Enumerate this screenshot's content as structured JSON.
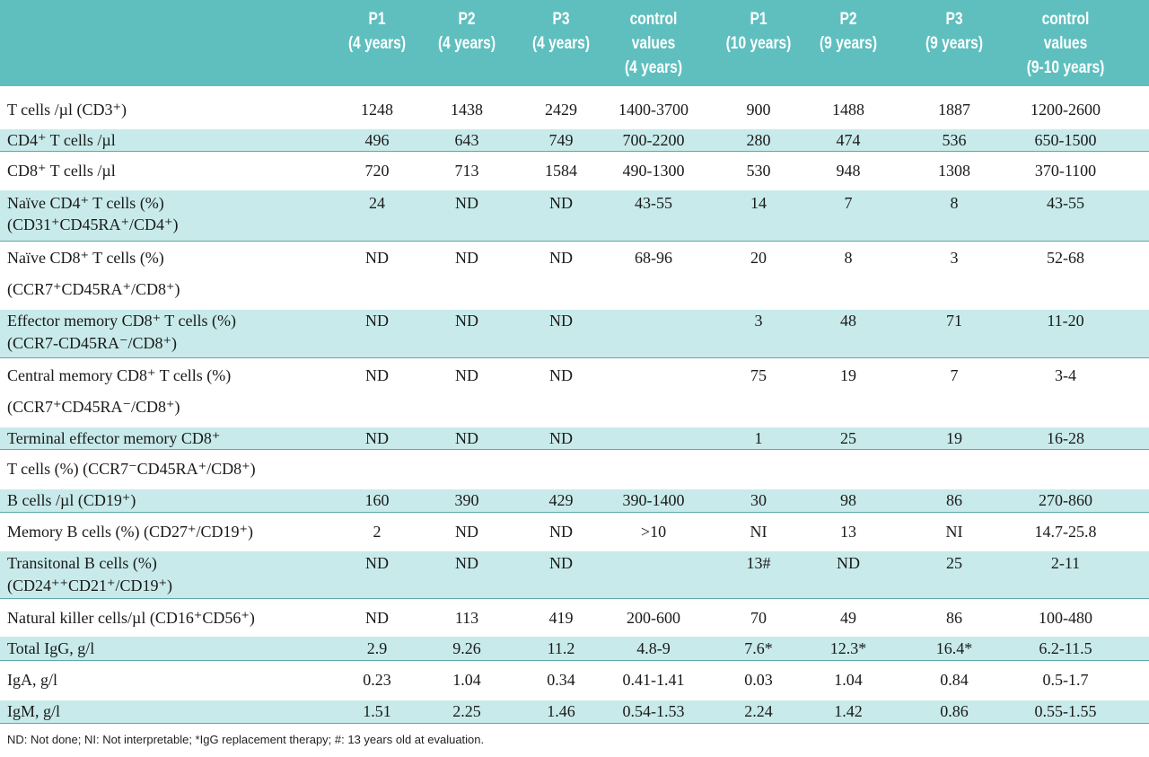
{
  "colors": {
    "header_bg": "#5fbfbf",
    "row_shade": "#c8eaea",
    "header_text": "#ffffff"
  },
  "columns": [
    {
      "line1": "P1",
      "line2": "(4 years)",
      "line3": ""
    },
    {
      "line1": "P2",
      "line2": "(4 years)",
      "line3": ""
    },
    {
      "line1": "P3",
      "line2": "(4 years)",
      "line3": ""
    },
    {
      "line1": "control",
      "line2": "values",
      "line3": "(4 years)"
    },
    {
      "line1": "P1",
      "line2": "(10 years)",
      "line3": ""
    },
    {
      "line1": "P2",
      "line2": "(9 years)",
      "line3": ""
    },
    {
      "line1": "P3",
      "line2": "(9 years)",
      "line3": ""
    },
    {
      "line1": "control",
      "line2": "values",
      "line3": "(9-10 years)"
    }
  ],
  "rows": [
    {
      "label": [
        "T cells /µl (CD3⁺)"
      ],
      "values": [
        "1248",
        "1438",
        "2429",
        "1400-3700",
        "900",
        "1488",
        "1887",
        "1200-2600"
      ]
    },
    {
      "label": [
        "CD4⁺ T cells /µl"
      ],
      "values": [
        "496",
        "643",
        "749",
        "700-2200",
        "280",
        "474",
        "536",
        "650-1500"
      ]
    },
    {
      "label": [
        "CD8⁺ T cells /µl"
      ],
      "values": [
        "720",
        "713",
        "1584",
        "490-1300",
        "530",
        "948",
        "1308",
        "370-1100"
      ]
    },
    {
      "label": [
        "Naïve CD4⁺ T cells (%)",
        "(CD31⁺CD45RA⁺/CD4⁺)"
      ],
      "values": [
        "24",
        "ND",
        "ND",
        "43-55",
        "14",
        "7",
        "8",
        "43-55"
      ]
    },
    {
      "label": [
        "Naïve CD8⁺ T cells (%)",
        "(CCR7⁺CD45RA⁺/CD8⁺)"
      ],
      "values": [
        "ND",
        "ND",
        "ND",
        "68-96",
        "20",
        "8",
        "3",
        "52-68"
      ]
    },
    {
      "label": [
        "Effector memory CD8⁺ T cells (%)",
        "(CCR7-CD45RA⁻/CD8⁺)"
      ],
      "values": [
        "ND",
        "ND",
        "ND",
        "",
        "3",
        "48",
        "71",
        "11-20"
      ]
    },
    {
      "label": [
        "Central memory CD8⁺ T cells  (%)",
        "(CCR7⁺CD45RA⁻/CD8⁺)"
      ],
      "values": [
        "ND",
        "ND",
        "ND",
        "",
        "75",
        "19",
        "7",
        "3-4"
      ]
    },
    {
      "label": [
        "Terminal effector memory CD8⁺",
        "T cells  (%) (CCR7⁻CD45RA⁺/CD8⁺)"
      ],
      "values": [
        "ND",
        "ND",
        "ND",
        "",
        "1",
        "25",
        "19",
        "16-28"
      ]
    },
    {
      "label": [
        "B cells /µl (CD19⁺)"
      ],
      "values": [
        "160",
        "390",
        "429",
        "390-1400",
        "30",
        "98",
        "86",
        "270-860"
      ]
    },
    {
      "label": [
        "Memory B cells (%)  (CD27⁺/CD19⁺)"
      ],
      "values": [
        "2",
        "ND",
        "ND",
        ">10",
        "NI",
        "13",
        "NI",
        "14.7-25.8"
      ]
    },
    {
      "label": [
        "Transitonal B cells (%)",
        "(CD24⁺⁺CD21⁺/CD19⁺)"
      ],
      "values": [
        "ND",
        "ND",
        "ND",
        "",
        "13#",
        "ND",
        "25",
        "2-11"
      ]
    },
    {
      "label": [
        "Natural killer cells/µl  (CD16⁺CD56⁺)"
      ],
      "values": [
        "ND",
        "113",
        "419",
        "200-600",
        "70",
        "49",
        "86",
        "100-480"
      ]
    },
    {
      "label": [
        "Total IgG, g/l"
      ],
      "values": [
        "2.9",
        "9.26",
        "11.2",
        "4.8-9",
        "7.6*",
        "12.3*",
        "16.4*",
        "6.2-11.5"
      ]
    },
    {
      "label": [
        "IgA, g/l"
      ],
      "values": [
        "0.23",
        "1.04",
        "0.34",
        "0.41-1.41",
        "0.03",
        "1.04",
        "0.84",
        "0.5-1.7"
      ]
    },
    {
      "label": [
        "IgM, g/l"
      ],
      "values": [
        "1.51",
        "2.25",
        "1.46",
        "0.54-1.53",
        "2.24",
        "1.42",
        "0.86",
        "0.55-1.55"
      ]
    }
  ],
  "footnote": "ND: Not done; NI: Not interpretable; *IgG replacement therapy; #: 13 years old at evaluation."
}
